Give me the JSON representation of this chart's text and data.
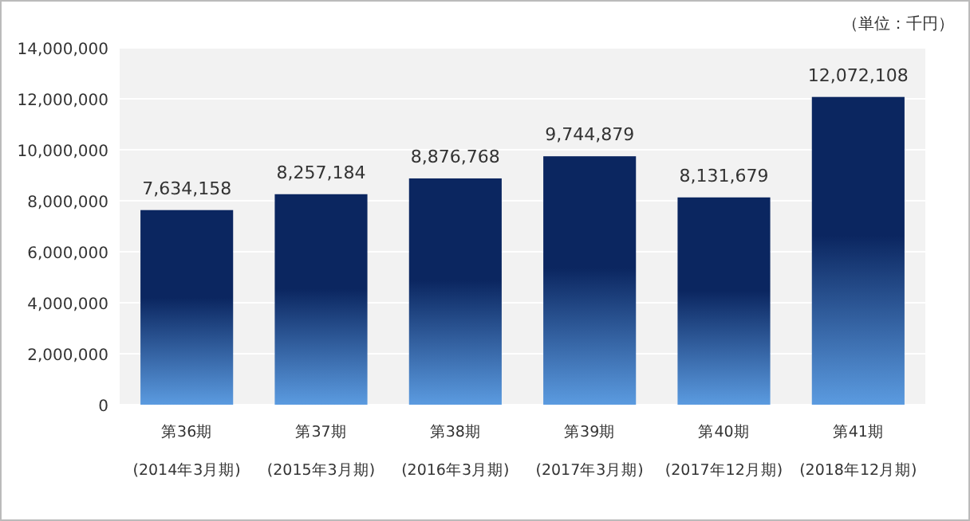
{
  "chart_data": {
    "type": "bar",
    "categories": [
      "第36期\n(2014年3月期)",
      "第37期\n(2015年3月期)",
      "第38期\n(2016年3月期)",
      "第39期\n(2017年3月期)",
      "第40期\n(2017年12月期)",
      "第41期\n(2018年12月期)"
    ],
    "values": [
      7634158,
      8257184,
      8876768,
      9744879,
      8131679,
      12072108
    ],
    "value_labels": [
      "7,634,158",
      "8,257,184",
      "8,876,768",
      "9,744,879",
      "8,131,679",
      "12,072,108"
    ],
    "color": "#0b2660",
    "ylim": [
      0,
      14000000
    ],
    "yticks": [
      {
        "value": 0,
        "label": "0"
      },
      {
        "value": 2000000,
        "label": "2,000,000"
      },
      {
        "value": 4000000,
        "label": "4,000,000"
      },
      {
        "value": 6000000,
        "label": "6,000,000"
      },
      {
        "value": 8000000,
        "label": "8,000,000"
      },
      {
        "value": 10000000,
        "label": "10,000,000"
      },
      {
        "value": 12000000,
        "label": "12,000,000"
      },
      {
        "value": 14000000,
        "label": "14,000,000"
      }
    ],
    "grid": "y",
    "annotations": [
      "（単位：千円）"
    ]
  }
}
